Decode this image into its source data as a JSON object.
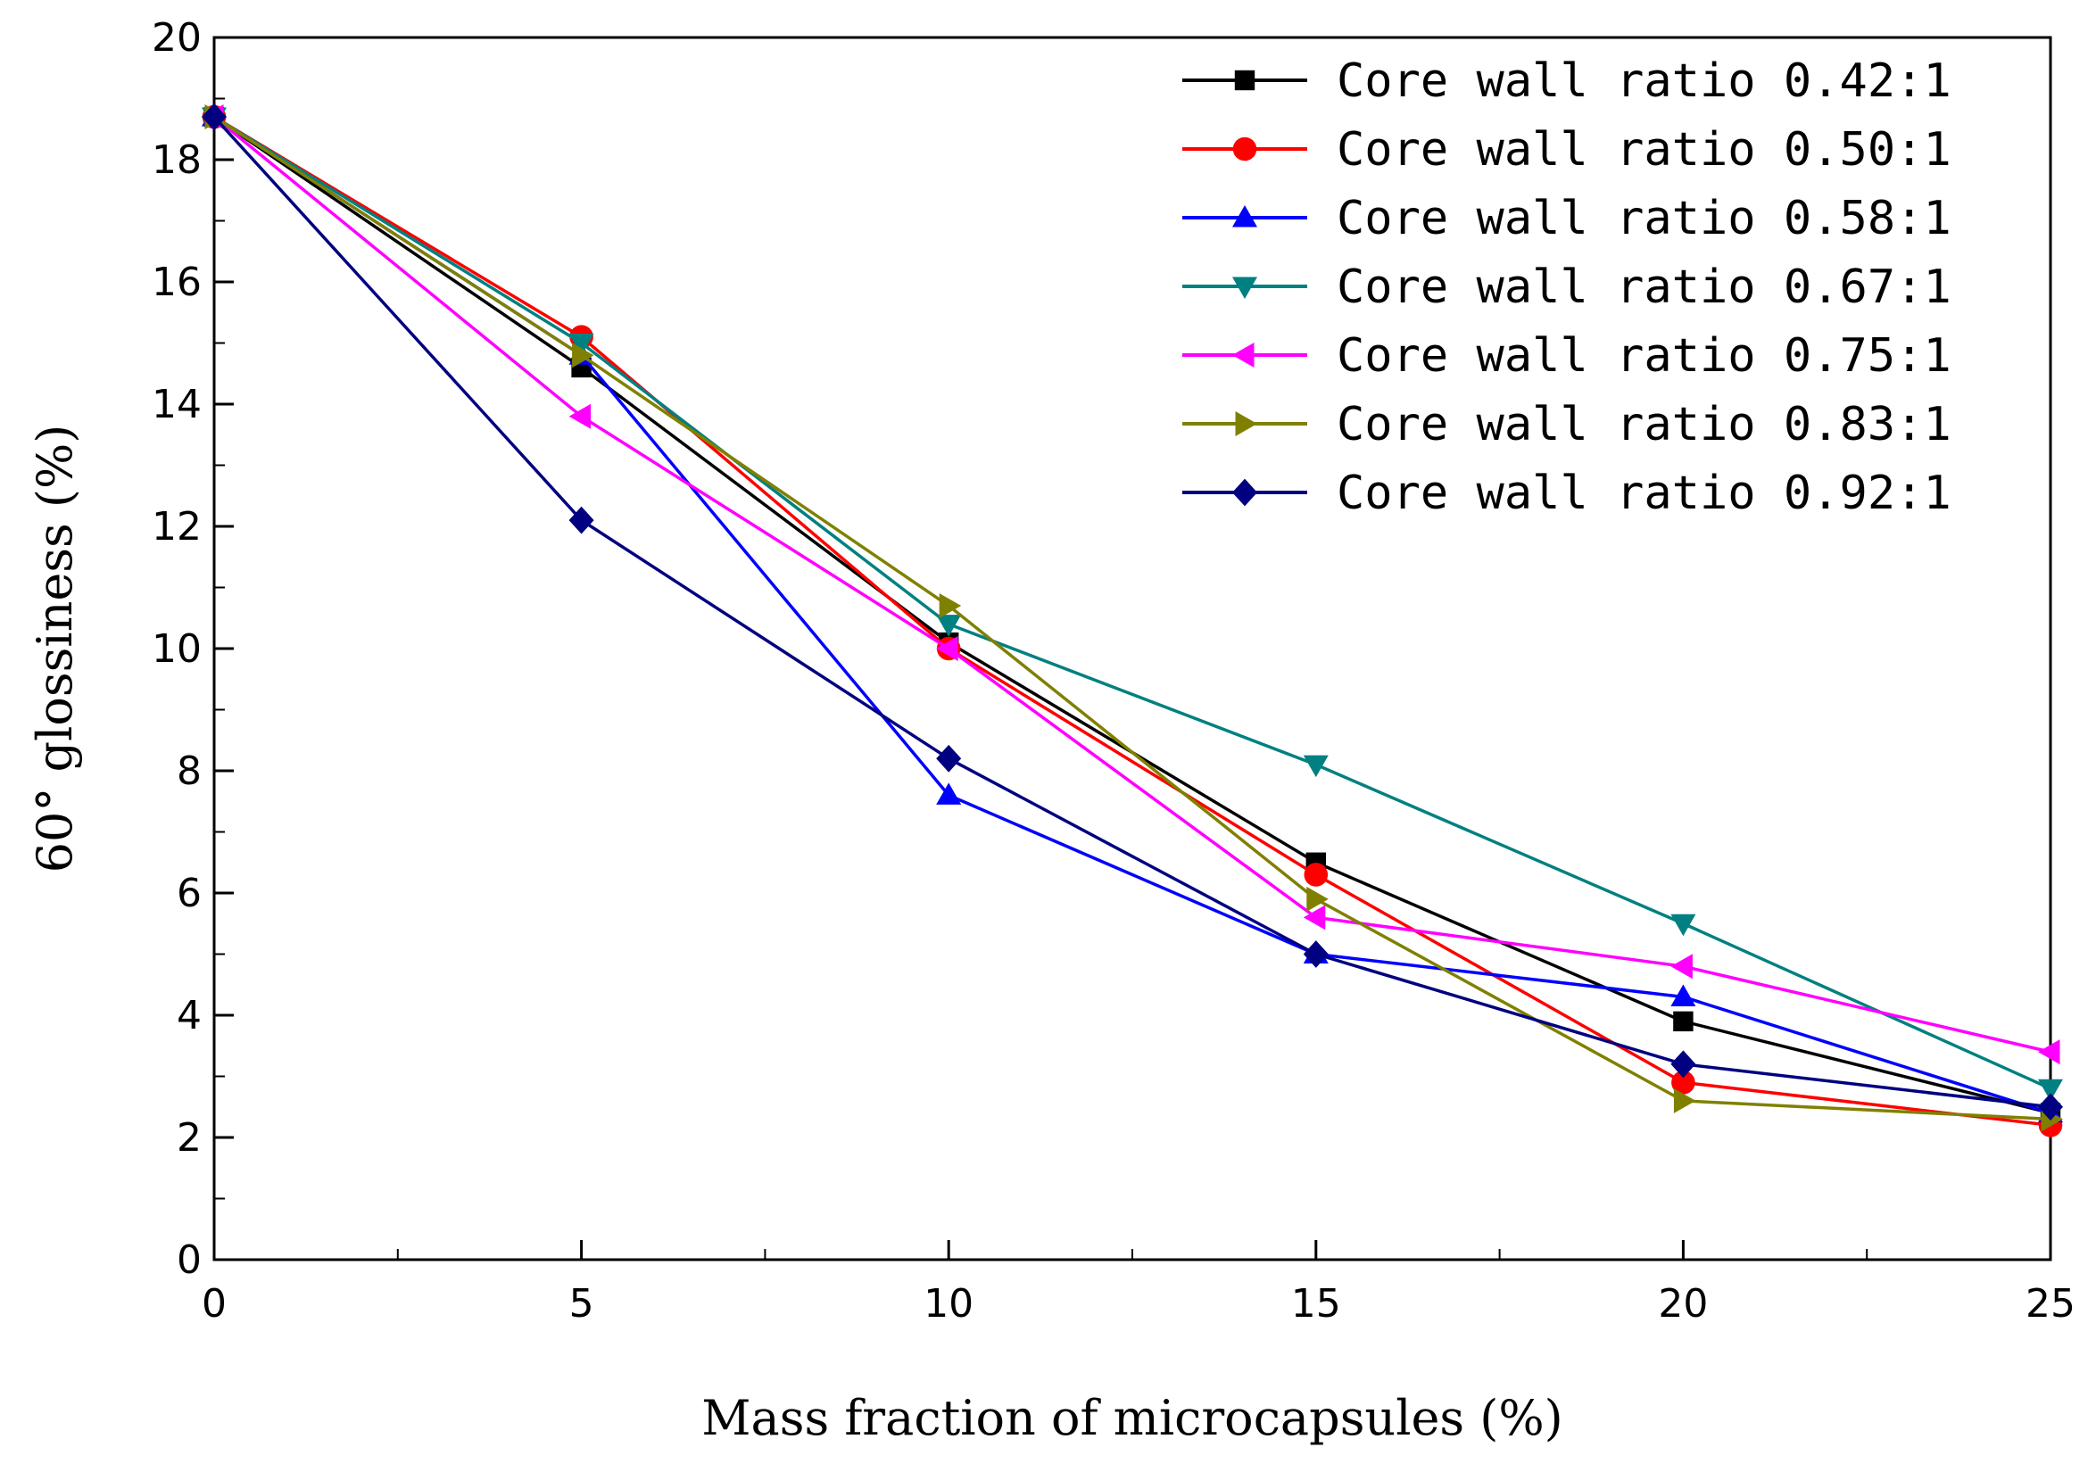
{
  "chart_data": {
    "type": "line",
    "title": "",
    "xlabel": "Mass fraction of microcapsules (%)",
    "ylabel": "60°  glossiness (%)",
    "xlim": [
      0,
      25
    ],
    "ylim": [
      0,
      20
    ],
    "x": [
      0,
      5,
      10,
      15,
      20,
      25
    ],
    "xticks": [
      "0",
      "5",
      "10",
      "15",
      "20",
      "25"
    ],
    "yticks": [
      "0",
      "2",
      "4",
      "6",
      "8",
      "10",
      "12",
      "14",
      "16",
      "18",
      "20"
    ],
    "legend_position": "top-right",
    "series": [
      {
        "name": "Core wall ratio 0.42:1",
        "color": "#000000",
        "marker": "square",
        "values": [
          18.7,
          14.6,
          10.1,
          6.5,
          3.9,
          2.4
        ]
      },
      {
        "name": "Core wall ratio 0.50:1",
        "color": "#ff0000",
        "marker": "circle",
        "values": [
          18.7,
          15.1,
          10.0,
          6.3,
          2.9,
          2.2
        ]
      },
      {
        "name": "Core wall ratio 0.58:1",
        "color": "#0000ff",
        "marker": "triangle-up",
        "values": [
          18.7,
          14.8,
          7.6,
          5.0,
          4.3,
          2.4
        ]
      },
      {
        "name": "Core wall ratio 0.67:1",
        "color": "#008080",
        "marker": "triangle-down",
        "values": [
          18.7,
          15.0,
          10.4,
          8.1,
          5.5,
          2.8
        ]
      },
      {
        "name": "Core wall ratio 0.75:1",
        "color": "#ff00ff",
        "marker": "triangle-left",
        "values": [
          18.7,
          13.8,
          10.0,
          5.6,
          4.8,
          3.4
        ]
      },
      {
        "name": "Core wall ratio 0.83:1",
        "color": "#808000",
        "marker": "triangle-right",
        "values": [
          18.7,
          14.8,
          10.7,
          5.9,
          2.6,
          2.3
        ]
      },
      {
        "name": "Core wall ratio 0.92:1",
        "color": "#000080",
        "marker": "diamond",
        "values": [
          18.7,
          12.1,
          8.2,
          5.0,
          3.2,
          2.5
        ]
      }
    ]
  }
}
